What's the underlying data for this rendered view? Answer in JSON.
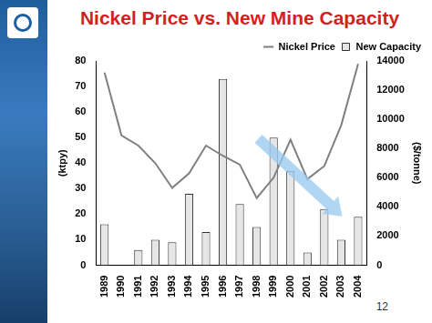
{
  "chart_data": {
    "type": "bar",
    "title": "Nickel Price vs. New Mine Capacity",
    "categories": [
      "1989",
      "1990",
      "1991",
      "1992",
      "1993",
      "1994",
      "1995",
      "1996",
      "1997",
      "1998",
      "1999",
      "2000",
      "2001",
      "2002",
      "2003",
      "2004"
    ],
    "series": [
      {
        "name": "New Capacity",
        "type": "bar",
        "color": "#e6e6e6",
        "values": [
          16,
          0,
          6,
          10,
          9,
          28,
          13,
          73,
          24,
          15,
          50,
          37,
          5,
          22,
          10,
          19
        ]
      },
      {
        "name": "Nickel Price",
        "type": "line",
        "color": "#808080",
        "axis": "y2",
        "values": [
          13200,
          8900,
          8200,
          7000,
          5300,
          6300,
          8200,
          7500,
          6900,
          4600,
          6000,
          8600,
          5900,
          6800,
          9600,
          13800
        ]
      }
    ],
    "y_label": "(ktpy)",
    "y2_label": "($/tonne)",
    "ylim": [
      0,
      80
    ],
    "yticks": [
      0,
      10,
      20,
      30,
      40,
      50,
      60,
      70,
      80
    ],
    "y2lim": [
      0,
      14000
    ],
    "y2ticks": [
      0,
      2000,
      4000,
      6000,
      8000,
      10000,
      12000,
      14000
    ],
    "grid": false,
    "legend": "top-right"
  },
  "page_number": "12"
}
